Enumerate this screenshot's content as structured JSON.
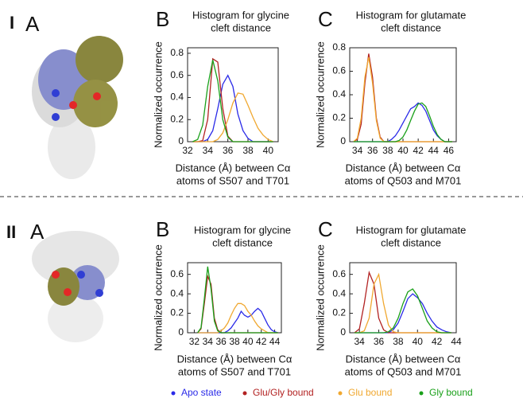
{
  "rows": [
    {
      "label": "I",
      "panel": "A"
    },
    {
      "label": "II",
      "panel": "A"
    }
  ],
  "chart_data": [
    {
      "type": "line",
      "panel": "B",
      "title": [
        "Histogram for glycine",
        "cleft distance"
      ],
      "xlabel": [
        "Distance (Å) between Cα",
        "atoms of S507 and T701"
      ],
      "ylabel": "Normalized occurrence",
      "xlim": [
        32,
        41
      ],
      "xticks": [
        32,
        34,
        36,
        38,
        40
      ],
      "ylim": [
        0,
        0.85
      ],
      "yticks": [
        0,
        0.2,
        0.4,
        0.6,
        0.8
      ],
      "x": [
        32.5,
        33,
        33.5,
        34,
        34.5,
        35,
        35.5,
        36,
        36.5,
        37,
        37.5,
        38,
        38.5,
        39,
        39.5,
        40,
        40.5
      ],
      "series": [
        {
          "name": "Apo state",
          "color": "#2a2ae8",
          "values": [
            0,
            0,
            0,
            0.02,
            0.1,
            0.3,
            0.52,
            0.6,
            0.5,
            0.25,
            0.1,
            0.03,
            0,
            0,
            0,
            0,
            0
          ]
        },
        {
          "name": "Glu/Gly bound",
          "color": "#b22222",
          "values": [
            0,
            0,
            0.01,
            0.2,
            0.75,
            0.72,
            0.3,
            0.05,
            0,
            0,
            0,
            0,
            0,
            0,
            0,
            0,
            0
          ]
        },
        {
          "name": "Glu bound",
          "color": "#f0a830",
          "values": [
            0,
            0,
            0,
            0,
            0,
            0.02,
            0.08,
            0.2,
            0.35,
            0.44,
            0.43,
            0.33,
            0.22,
            0.12,
            0.06,
            0.02,
            0
          ]
        },
        {
          "name": "Gly bound",
          "color": "#1aa01a",
          "values": [
            0,
            0.02,
            0.15,
            0.5,
            0.74,
            0.55,
            0.2,
            0.04,
            0,
            0,
            0,
            0,
            0,
            0,
            0,
            0,
            0
          ]
        }
      ]
    },
    {
      "type": "line",
      "panel": "C",
      "title": [
        "Histogram for glutamate",
        "cleft distance"
      ],
      "xlabel": [
        "Distance (Å) between Cα",
        "atoms of Q503 and M701"
      ],
      "ylabel": "Normalized occurrence",
      "xlim": [
        33,
        47
      ],
      "xticks": [
        34,
        36,
        38,
        40,
        42,
        44,
        46
      ],
      "ylim": [
        0,
        0.8
      ],
      "yticks": [
        0,
        0.2,
        0.4,
        0.6,
        0.8
      ],
      "x": [
        33.5,
        34,
        34.5,
        35,
        35.5,
        36,
        36.5,
        37,
        37.5,
        38,
        38.5,
        39,
        39.5,
        40,
        40.5,
        41,
        41.5,
        42,
        42.5,
        43,
        43.5,
        44,
        44.5,
        45,
        45.5,
        46,
        46.5
      ],
      "series": [
        {
          "name": "Apo state",
          "color": "#2a2ae8",
          "values": [
            0,
            0,
            0,
            0,
            0,
            0,
            0,
            0,
            0,
            0,
            0.02,
            0.05,
            0.1,
            0.16,
            0.22,
            0.28,
            0.3,
            0.33,
            0.31,
            0.26,
            0.18,
            0.1,
            0.05,
            0.02,
            0,
            0,
            0
          ]
        },
        {
          "name": "Glu/Gly bound",
          "color": "#b22222",
          "values": [
            0,
            0.02,
            0.15,
            0.5,
            0.75,
            0.55,
            0.2,
            0.04,
            0,
            0,
            0,
            0,
            0,
            0,
            0,
            0,
            0,
            0,
            0,
            0,
            0,
            0,
            0,
            0,
            0,
            0,
            0
          ]
        },
        {
          "name": "Glu bound",
          "color": "#f0a830",
          "values": [
            0,
            0.03,
            0.2,
            0.55,
            0.72,
            0.5,
            0.18,
            0.03,
            0,
            0,
            0,
            0,
            0,
            0,
            0,
            0,
            0,
            0,
            0,
            0,
            0,
            0,
            0,
            0,
            0,
            0,
            0
          ]
        },
        {
          "name": "Gly bound",
          "color": "#1aa01a",
          "values": [
            0,
            0,
            0,
            0,
            0,
            0,
            0,
            0,
            0,
            0,
            0,
            0,
            0.01,
            0.04,
            0.1,
            0.18,
            0.26,
            0.32,
            0.33,
            0.3,
            0.22,
            0.13,
            0.06,
            0.02,
            0,
            0,
            0
          ]
        }
      ]
    },
    {
      "type": "line",
      "panel": "B",
      "title": [
        "Histogram for glycine",
        "cleft distance"
      ],
      "xlabel": [
        "Distance (Å) between Cα",
        "atoms of S507 and T701"
      ],
      "ylabel": "Normalized occurrence",
      "xlim": [
        31,
        45
      ],
      "xticks": [
        32,
        34,
        36,
        38,
        40,
        42,
        44
      ],
      "ylim": [
        0,
        0.72
      ],
      "yticks": [
        0,
        0.2,
        0.4,
        0.6
      ],
      "x": [
        32.5,
        33,
        33.5,
        34,
        34.5,
        35,
        35.5,
        36,
        36.5,
        37,
        37.5,
        38,
        38.5,
        39,
        39.5,
        40,
        40.5,
        41,
        41.5,
        42,
        42.5,
        43,
        43.5,
        44,
        44.5
      ],
      "series": [
        {
          "name": "Apo state",
          "color": "#2a2ae8",
          "values": [
            0,
            0,
            0,
            0,
            0,
            0,
            0,
            0,
            0,
            0.02,
            0.05,
            0.1,
            0.15,
            0.22,
            0.18,
            0.16,
            0.18,
            0.22,
            0.25,
            0.22,
            0.15,
            0.08,
            0.03,
            0.01,
            0
          ]
        },
        {
          "name": "Glu/Gly bound",
          "color": "#b22222",
          "values": [
            0,
            0.04,
            0.3,
            0.58,
            0.5,
            0.15,
            0.03,
            0,
            0,
            0,
            0,
            0,
            0,
            0,
            0,
            0,
            0,
            0,
            0,
            0,
            0,
            0,
            0,
            0,
            0
          ]
        },
        {
          "name": "Glu bound",
          "color": "#f0a830",
          "values": [
            0,
            0,
            0,
            0,
            0,
            0,
            0,
            0.02,
            0.05,
            0.1,
            0.18,
            0.25,
            0.3,
            0.3,
            0.28,
            0.22,
            0.18,
            0.12,
            0.07,
            0.04,
            0.02,
            0,
            0,
            0,
            0
          ]
        },
        {
          "name": "Gly bound",
          "color": "#1aa01a",
          "values": [
            0,
            0.05,
            0.35,
            0.68,
            0.45,
            0.12,
            0.02,
            0,
            0,
            0,
            0,
            0,
            0,
            0,
            0,
            0,
            0,
            0,
            0,
            0,
            0,
            0,
            0,
            0,
            0
          ]
        }
      ]
    },
    {
      "type": "line",
      "panel": "C",
      "title": [
        "Histogram for glutamate",
        "cleft distance"
      ],
      "xlabel": [
        "Distance (Å) between Cα",
        "atoms of Q503 and M701"
      ],
      "ylabel": "Normalized occurrence",
      "xlim": [
        33,
        44
      ],
      "xticks": [
        34,
        36,
        38,
        40,
        42,
        44
      ],
      "ylim": [
        0,
        0.72
      ],
      "yticks": [
        0,
        0.2,
        0.4,
        0.6
      ],
      "x": [
        33.5,
        34,
        34.5,
        35,
        35.5,
        36,
        36.5,
        37,
        37.5,
        38,
        38.5,
        39,
        39.5,
        40,
        40.5,
        41,
        41.5,
        42,
        42.5,
        43,
        43.5
      ],
      "series": [
        {
          "name": "Apo state",
          "color": "#2a2ae8",
          "values": [
            0,
            0,
            0,
            0,
            0,
            0,
            0,
            0,
            0.03,
            0.1,
            0.22,
            0.35,
            0.4,
            0.36,
            0.3,
            0.2,
            0.12,
            0.06,
            0.03,
            0.01,
            0
          ]
        },
        {
          "name": "Glu/Gly bound",
          "color": "#b22222",
          "values": [
            0,
            0.04,
            0.3,
            0.62,
            0.5,
            0.15,
            0.03,
            0,
            0,
            0,
            0,
            0,
            0,
            0,
            0,
            0,
            0,
            0,
            0,
            0,
            0
          ]
        },
        {
          "name": "Glu bound",
          "color": "#f0a830",
          "values": [
            0,
            0,
            0.02,
            0.15,
            0.5,
            0.6,
            0.3,
            0.08,
            0.01,
            0,
            0,
            0,
            0,
            0,
            0,
            0,
            0,
            0,
            0,
            0,
            0
          ]
        },
        {
          "name": "Gly bound",
          "color": "#1aa01a",
          "values": [
            0,
            0,
            0,
            0,
            0,
            0,
            0,
            0.01,
            0.05,
            0.15,
            0.3,
            0.42,
            0.45,
            0.38,
            0.25,
            0.12,
            0.05,
            0.01,
            0,
            0,
            0
          ]
        }
      ]
    }
  ]
}
